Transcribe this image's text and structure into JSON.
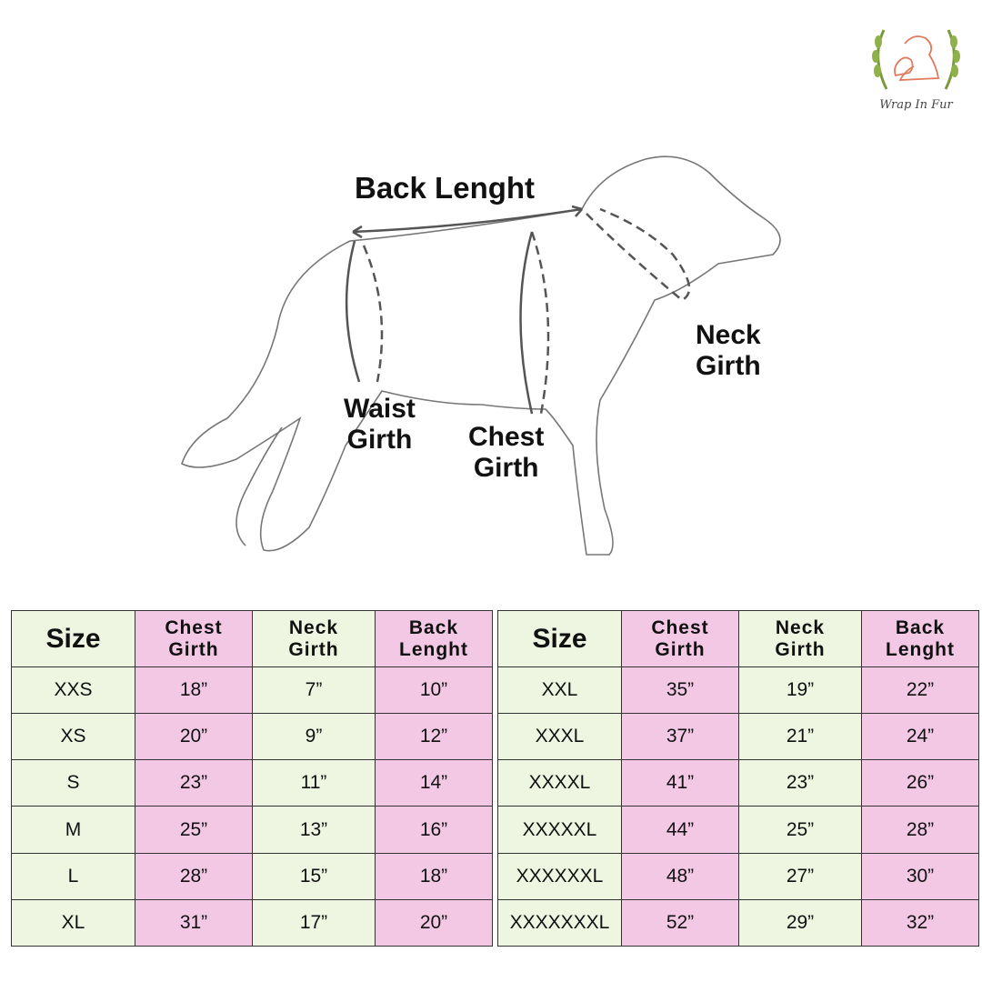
{
  "brand": {
    "name": "Wrap In Fur",
    "logo_icon": "dogs-laurel-logo-icon"
  },
  "diagram": {
    "labels": {
      "back_length": "Back Lenght",
      "neck_girth": [
        "Neck",
        "Girth"
      ],
      "chest_girth": [
        "Chest",
        "Girth"
      ],
      "waist_girth": [
        "Waist",
        "Girth"
      ]
    }
  },
  "colors": {
    "size_column": "#eef5e0",
    "measure_pink": "#f2c8e5",
    "measure_green": "#eef5e0"
  },
  "table_headers": {
    "size": "Size",
    "chest": [
      "Chest",
      "Girth"
    ],
    "neck": [
      "Neck",
      "Girth"
    ],
    "back": [
      "Back",
      "Lenght"
    ]
  },
  "tables": [
    {
      "rows": [
        {
          "size": "XXS",
          "chest": "18”",
          "neck": "7”",
          "back": "10”"
        },
        {
          "size": "XS",
          "chest": "20”",
          "neck": "9”",
          "back": "12”"
        },
        {
          "size": "S",
          "chest": "23”",
          "neck": "11”",
          "back": "14”"
        },
        {
          "size": "M",
          "chest": "25”",
          "neck": "13”",
          "back": "16”"
        },
        {
          "size": "L",
          "chest": "28”",
          "neck": "15”",
          "back": "18”"
        },
        {
          "size": "XL",
          "chest": "31”",
          "neck": "17”",
          "back": "20”"
        }
      ]
    },
    {
      "rows": [
        {
          "size": "XXL",
          "chest": "35”",
          "neck": "19”",
          "back": "22”"
        },
        {
          "size": "XXXL",
          "chest": "37”",
          "neck": "21”",
          "back": "24”"
        },
        {
          "size": "XXXXL",
          "chest": "41”",
          "neck": "23”",
          "back": "26”"
        },
        {
          "size": "XXXXXL",
          "chest": "44”",
          "neck": "25”",
          "back": "28”"
        },
        {
          "size": "XXXXXXL",
          "chest": "48”",
          "neck": "27”",
          "back": "30”"
        },
        {
          "size": "XXXXXXXL",
          "chest": "52”",
          "neck": "29”",
          "back": "32”"
        }
      ]
    }
  ]
}
